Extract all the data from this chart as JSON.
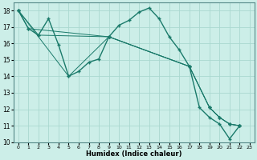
{
  "xlabel": "Humidex (Indice chaleur)",
  "bg_color": "#cceee8",
  "grid_color": "#aad8d0",
  "line_color": "#1a7a6a",
  "xlim": [
    -0.5,
    23.5
  ],
  "ylim": [
    10,
    18.5
  ],
  "xticks": [
    0,
    1,
    2,
    3,
    4,
    5,
    6,
    7,
    8,
    9,
    10,
    11,
    12,
    13,
    14,
    15,
    16,
    17,
    18,
    19,
    20,
    21,
    22,
    23
  ],
  "yticks": [
    10,
    11,
    12,
    13,
    14,
    15,
    16,
    17,
    18
  ],
  "series": [
    {
      "x": [
        0,
        1,
        2,
        3,
        4,
        5,
        6,
        7,
        8,
        9,
        10,
        11,
        12,
        13,
        14,
        15,
        16,
        17,
        18,
        19,
        20,
        21,
        22
      ],
      "y": [
        18.0,
        16.9,
        16.5,
        17.5,
        15.9,
        14.0,
        14.3,
        14.85,
        15.05,
        16.4,
        17.1,
        17.4,
        17.9,
        18.15,
        17.5,
        16.4,
        15.6,
        14.6,
        12.1,
        11.5,
        11.1,
        10.2,
        11.0
      ]
    },
    {
      "x": [
        0,
        1,
        9,
        17,
        19,
        20,
        21,
        22
      ],
      "y": [
        18.0,
        16.9,
        16.4,
        14.6,
        12.1,
        11.5,
        11.1,
        11.0
      ]
    },
    {
      "x": [
        0,
        2,
        9,
        17,
        19,
        20,
        21,
        22
      ],
      "y": [
        18.0,
        16.5,
        16.4,
        14.6,
        12.1,
        11.5,
        11.1,
        11.0
      ]
    },
    {
      "x": [
        0,
        5,
        9,
        17,
        19,
        20,
        21,
        22
      ],
      "y": [
        18.0,
        14.0,
        16.4,
        14.6,
        12.1,
        11.5,
        11.1,
        11.0
      ]
    }
  ]
}
